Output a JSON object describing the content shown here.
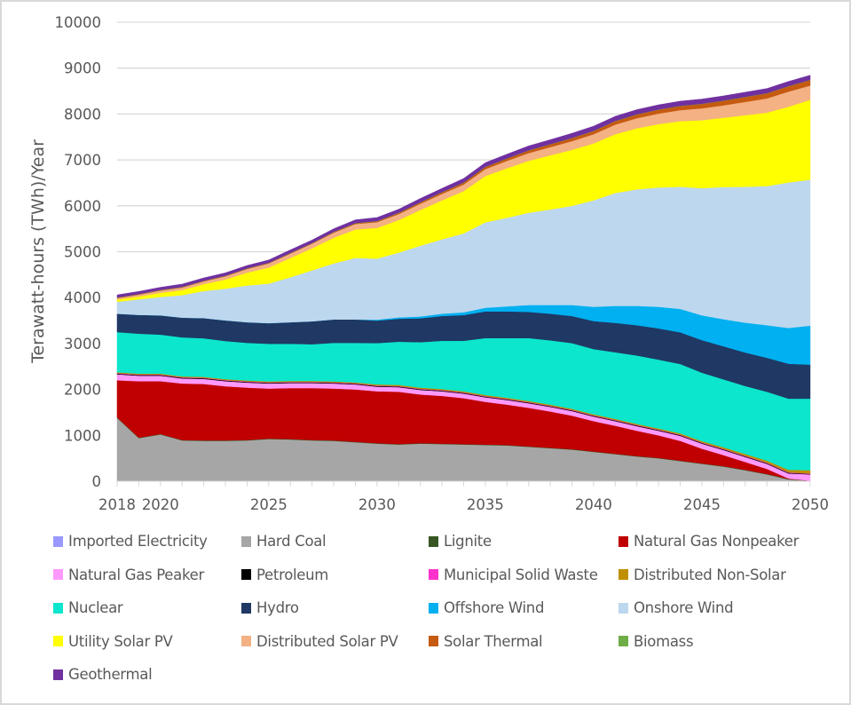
{
  "chart_data": {
    "type": "area",
    "stacked": true,
    "title": "",
    "xlabel": "",
    "ylabel": "Terawatt-hours (TWh)/Year",
    "ylim": [
      0,
      10000
    ],
    "yticks": [
      0,
      1000,
      2000,
      3000,
      4000,
      5000,
      6000,
      7000,
      8000,
      9000,
      10000
    ],
    "xlim": [
      2018,
      2050
    ],
    "xtick_labels": [
      "2018",
      "2020",
      "2025",
      "2030",
      "2035",
      "2040",
      "2045",
      "2050"
    ],
    "grid": true,
    "legend_position": "bottom",
    "x": [
      2018,
      2019,
      2020,
      2021,
      2022,
      2023,
      2024,
      2025,
      2026,
      2027,
      2028,
      2029,
      2030,
      2031,
      2032,
      2033,
      2034,
      2035,
      2036,
      2037,
      2038,
      2039,
      2040,
      2041,
      2042,
      2043,
      2044,
      2045,
      2046,
      2047,
      2048,
      2049,
      2050
    ],
    "series": [
      {
        "name": "Imported Electricity",
        "color": "#9999ff",
        "values": [
          10,
          10,
          10,
          10,
          10,
          10,
          10,
          10,
          10,
          10,
          10,
          10,
          10,
          10,
          10,
          10,
          10,
          10,
          10,
          10,
          10,
          10,
          10,
          10,
          10,
          10,
          10,
          10,
          10,
          10,
          10,
          10,
          10
        ]
      },
      {
        "name": "Hard Coal",
        "color": "#a6a6a6",
        "values": [
          1370,
          930,
          1010,
          880,
          870,
          870,
          880,
          910,
          900,
          880,
          870,
          840,
          810,
          790,
          810,
          800,
          790,
          780,
          770,
          740,
          710,
          680,
          630,
          580,
          530,
          490,
          430,
          370,
          310,
          230,
          140,
          30,
          0
        ]
      },
      {
        "name": "Lignite",
        "color": "#375623",
        "values": [
          10,
          10,
          10,
          10,
          10,
          10,
          10,
          10,
          10,
          10,
          10,
          10,
          10,
          10,
          10,
          10,
          10,
          10,
          10,
          10,
          10,
          10,
          10,
          10,
          10,
          10,
          10,
          10,
          10,
          10,
          10,
          10,
          0
        ]
      },
      {
        "name": "Natural Gas Nonpeaker",
        "color": "#c00000",
        "values": [
          810,
          1230,
          1150,
          1230,
          1230,
          1180,
          1140,
          1090,
          1110,
          1130,
          1130,
          1140,
          1130,
          1140,
          1060,
          1040,
          1000,
          930,
          880,
          840,
          790,
          730,
          660,
          610,
          550,
          490,
          430,
          320,
          240,
          170,
          110,
          10,
          0
        ]
      },
      {
        "name": "Natural Gas Peaker",
        "color": "#ff99ff",
        "values": [
          130,
          120,
          120,
          110,
          110,
          110,
          110,
          110,
          110,
          110,
          110,
          110,
          100,
          100,
          100,
          100,
          100,
          100,
          100,
          100,
          100,
          100,
          100,
          100,
          100,
          100,
          110,
          110,
          110,
          110,
          110,
          110,
          140
        ]
      },
      {
        "name": "Petroleum",
        "color": "#000000",
        "values": [
          15,
          15,
          15,
          15,
          15,
          15,
          15,
          15,
          15,
          15,
          15,
          15,
          15,
          15,
          15,
          15,
          15,
          15,
          15,
          15,
          15,
          15,
          15,
          15,
          15,
          15,
          15,
          15,
          15,
          15,
          15,
          15,
          10
        ]
      },
      {
        "name": "Municipal Solid Waste",
        "color": "#ff33cc",
        "values": [
          10,
          10,
          10,
          10,
          10,
          10,
          10,
          10,
          10,
          10,
          10,
          10,
          10,
          10,
          10,
          10,
          10,
          10,
          10,
          10,
          10,
          10,
          10,
          10,
          10,
          10,
          10,
          10,
          10,
          10,
          10,
          10,
          10
        ]
      },
      {
        "name": "Distributed Non-Solar",
        "color": "#bf8f00",
        "values": [
          20,
          20,
          20,
          20,
          20,
          20,
          20,
          20,
          20,
          20,
          20,
          20,
          25,
          25,
          25,
          25,
          25,
          25,
          25,
          25,
          25,
          25,
          25,
          25,
          25,
          25,
          30,
          30,
          35,
          40,
          45,
          55,
          70
        ]
      },
      {
        "name": "Nuclear",
        "color": "#0ce6cc",
        "values": [
          875,
          870,
          850,
          850,
          840,
          830,
          820,
          820,
          810,
          800,
          840,
          860,
          900,
          940,
          990,
          1050,
          1100,
          1240,
          1300,
          1370,
          1400,
          1430,
          1420,
          1450,
          1490,
          1500,
          1510,
          1490,
          1480,
          1480,
          1500,
          1550,
          1560
        ]
      },
      {
        "name": "Hydro",
        "color": "#1f3864",
        "values": [
          400,
          410,
          420,
          430,
          440,
          450,
          450,
          450,
          470,
          500,
          510,
          510,
          490,
          500,
          520,
          540,
          560,
          580,
          580,
          570,
          580,
          590,
          610,
          640,
          660,
          680,
          690,
          710,
          720,
          730,
          740,
          760,
          740
        ]
      },
      {
        "name": "Offshore Wind",
        "color": "#00b0f0",
        "values": [
          0,
          0,
          0,
          0,
          0,
          0,
          0,
          0,
          0,
          0,
          0,
          0,
          20,
          30,
          40,
          50,
          60,
          80,
          110,
          150,
          190,
          240,
          310,
          370,
          420,
          470,
          510,
          540,
          590,
          650,
          710,
          780,
          850
        ]
      },
      {
        "name": "Onshore Wind",
        "color": "#bdd7ee",
        "values": [
          260,
          340,
          400,
          490,
          590,
          690,
          800,
          860,
          980,
          1110,
          1220,
          1340,
          1330,
          1410,
          1540,
          1620,
          1720,
          1860,
          1930,
          2010,
          2080,
          2160,
          2320,
          2460,
          2540,
          2600,
          2660,
          2770,
          2880,
          2960,
          3030,
          3170,
          3180
        ]
      },
      {
        "name": "Utility Solar PV",
        "color": "#ffff00",
        "values": [
          50,
          60,
          90,
          110,
          150,
          200,
          280,
          350,
          420,
          480,
          560,
          620,
          670,
          710,
          780,
          850,
          920,
          1010,
          1080,
          1130,
          1180,
          1220,
          1240,
          1280,
          1330,
          1380,
          1430,
          1480,
          1510,
          1560,
          1600,
          1650,
          1740
        ]
      },
      {
        "name": "Distributed Solar PV",
        "color": "#f4b183",
        "values": [
          30,
          40,
          50,
          55,
          60,
          70,
          80,
          90,
          95,
          100,
          110,
          120,
          125,
          130,
          135,
          140,
          145,
          150,
          160,
          170,
          180,
          190,
          200,
          210,
          220,
          230,
          240,
          260,
          270,
          290,
          310,
          330,
          310
        ]
      },
      {
        "name": "Solar Thermal",
        "color": "#c55a11",
        "values": [
          10,
          10,
          10,
          10,
          10,
          10,
          10,
          10,
          10,
          10,
          15,
          15,
          20,
          25,
          30,
          35,
          40,
          45,
          50,
          55,
          60,
          65,
          70,
          75,
          80,
          85,
          90,
          95,
          100,
          105,
          110,
          115,
          120
        ]
      },
      {
        "name": "Biomass",
        "color": "#70ad47",
        "values": [
          5,
          5,
          5,
          5,
          5,
          5,
          5,
          5,
          5,
          5,
          5,
          5,
          5,
          5,
          5,
          5,
          5,
          5,
          5,
          5,
          5,
          5,
          5,
          5,
          5,
          5,
          5,
          5,
          5,
          5,
          5,
          5,
          5
        ]
      },
      {
        "name": "Geothermal",
        "color": "#7030a0",
        "values": [
          55,
          55,
          55,
          60,
          60,
          60,
          60,
          60,
          65,
          65,
          65,
          70,
          75,
          75,
          80,
          80,
          85,
          90,
          90,
          95,
          95,
          100,
          100,
          100,
          100,
          100,
          100,
          100,
          100,
          100,
          100,
          100,
          100
        ]
      }
    ]
  }
}
